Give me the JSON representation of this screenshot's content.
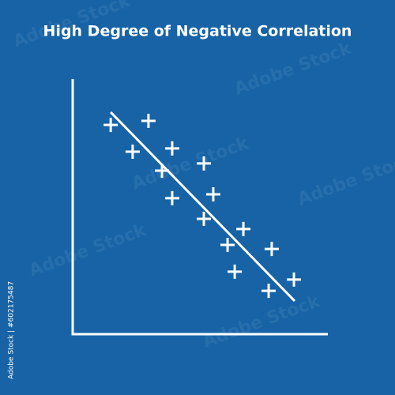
{
  "chart_data": {
    "type": "scatter",
    "title": "High Degree of Negative Correlation",
    "x": [
      14.9,
      29.7,
      23.5,
      39.0,
      35.0,
      51.4,
      39.0,
      55.1,
      51.4,
      66.9,
      60.7,
      78.0,
      63.5,
      86.7,
      76.8
    ],
    "y": [
      82.0,
      83.6,
      71.5,
      72.8,
      64.1,
      66.9,
      53.3,
      54.8,
      45.2,
      41.2,
      35.0,
      33.4,
      24.5,
      21.4,
      17.0
    ],
    "color": "#ffffff",
    "trend_line": {
      "x": [
        14.9,
        87.0
      ],
      "y": [
        87.0,
        13.0
      ],
      "color": "#ffffff"
    },
    "xlim": [
      0,
      100
    ],
    "ylim": [
      0,
      100
    ],
    "watermark": "Adobe Stock",
    "stock_id": "Adobe Stock | #602175487"
  }
}
